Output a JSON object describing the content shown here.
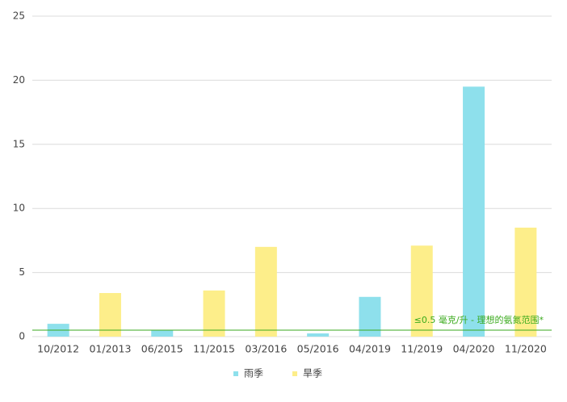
{
  "chart_data": {
    "type": "bar",
    "categories": [
      "10/2012",
      "01/2013",
      "06/2015",
      "11/2015",
      "03/2016",
      "05/2016",
      "04/2019",
      "11/2019",
      "04/2020",
      "11/2020"
    ],
    "series": [
      {
        "name": "雨季",
        "color": "#8ee0ec",
        "values": [
          1.0,
          null,
          0.5,
          null,
          null,
          0.25,
          3.1,
          null,
          19.5,
          null
        ]
      },
      {
        "name": "旱季",
        "color": "#fdee8a",
        "values": [
          null,
          3.4,
          null,
          3.6,
          7.0,
          null,
          null,
          7.1,
          null,
          8.5
        ]
      }
    ],
    "ylim": [
      0,
      25
    ],
    "yticks": [
      0,
      5,
      10,
      15,
      20,
      25
    ],
    "grid": true,
    "threshold": {
      "value": 0.5,
      "label": "≤0.5 毫克/升 - 理想的氨氮范围*",
      "color": "#3aaa1c"
    },
    "legend": "bottom"
  }
}
